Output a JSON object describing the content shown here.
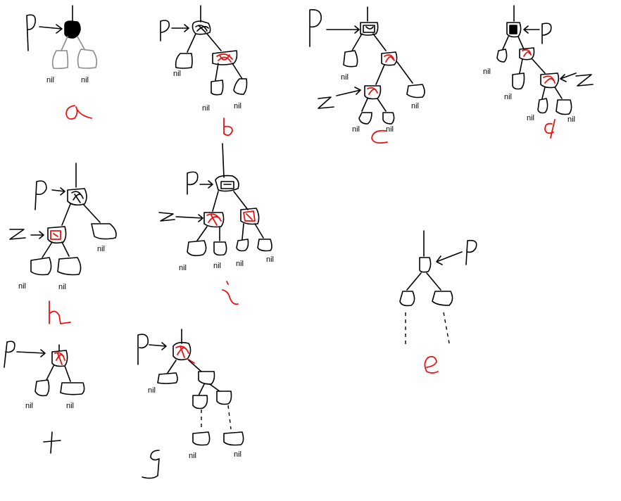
{
  "colors": {
    "black_node": "#000000",
    "red_node": "#e81313",
    "nil_node": "#000000",
    "grey_nil": "#8a8a8a",
    "caption": "#e81313",
    "background": "#ffffff"
  },
  "labels": {
    "nil": "nil",
    "p": "P",
    "z": "Z"
  },
  "captions": {
    "a": "a",
    "b": "b",
    "c": "c",
    "d": "d",
    "e": "e",
    "f": "f",
    "g": "g",
    "h": "h",
    "i": "i"
  },
  "diagrams": [
    {
      "id": "a",
      "nodes": [
        "black"
      ],
      "children": [
        "nil",
        "nil"
      ]
    },
    {
      "id": "b",
      "nodes": [
        "black",
        "red"
      ],
      "children": [
        "nil",
        "nil",
        "nil"
      ]
    },
    {
      "id": "c",
      "nodes": [
        "black",
        "red",
        "red"
      ],
      "children": [
        "nil",
        "nil",
        "nil"
      ]
    },
    {
      "id": "d",
      "nodes": [
        "black",
        "red",
        "red"
      ],
      "children": [
        "nil",
        "nil",
        "nil"
      ]
    },
    {
      "id": "e",
      "nodes": [
        "empty"
      ],
      "children": [
        "subtree",
        "subtree"
      ]
    },
    {
      "id": "f",
      "nodes": [
        "red"
      ],
      "children": [
        "nil",
        "nil"
      ]
    },
    {
      "id": "g",
      "nodes": [
        "red"
      ],
      "children": [
        "nil",
        "nil"
      ]
    },
    {
      "id": "h",
      "nodes": [
        "black",
        "red"
      ],
      "children": [
        "nil",
        "nil",
        "nil"
      ]
    },
    {
      "id": "i",
      "nodes": [
        "black",
        "red",
        "red"
      ],
      "children": [
        "nil",
        "nil",
        "nil",
        "nil"
      ]
    }
  ]
}
